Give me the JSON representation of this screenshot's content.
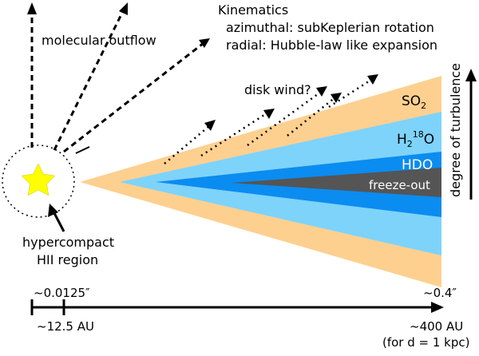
{
  "labels": {
    "molecular_outflow": "molecular outflow",
    "kinematics_title": "Kinematics",
    "kinematics_azimuthal": "azimuthal: subKeplerian rotation",
    "kinematics_radial": "radial: Hubble-law like expansion",
    "disk_wind": "disk wind?",
    "so2_main": "SO",
    "so2_sub": "2",
    "h218o_h": "H",
    "h218o_sub": "2",
    "h218o_sup": "18",
    "h218o_o": "O",
    "hdo": "HDO",
    "freeze_out": "freeze-out",
    "degree_of_turbulence": "degree of turbulence",
    "hypercompact_line1": "hypercompact",
    "hypercompact_line2": "HII region"
  },
  "scale": {
    "angle_inner": "~0.0125″",
    "angle_outer": "~0.4″",
    "au_inner": "~12.5 AU",
    "au_outer": "~400 AU",
    "distance_note": "(for d = 1 kpc)"
  },
  "colors": {
    "so2_layer": "#fdd090",
    "h218o_layer": "#7ed3fa",
    "hdo_layer": "#0b8cf0",
    "freeze_out_layer": "#555555",
    "star": "#ffff00"
  }
}
